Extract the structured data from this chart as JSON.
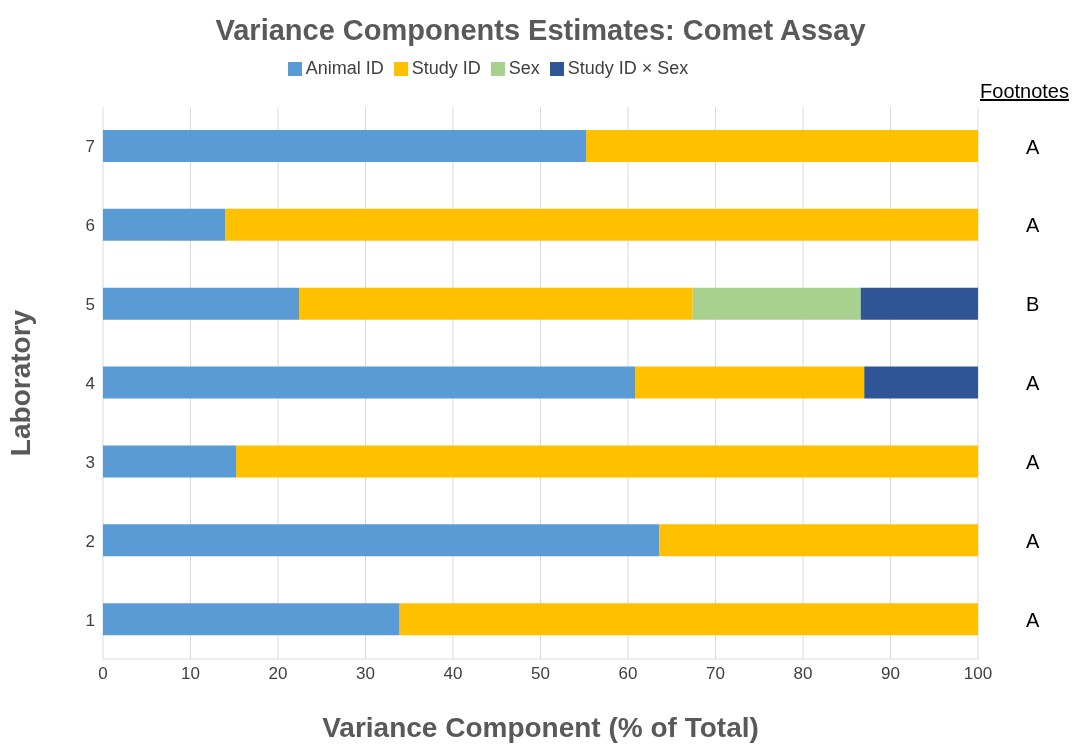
{
  "chart_data": {
    "type": "bar",
    "orientation": "horizontal",
    "stacked": true,
    "title": "Variance Components Estimates: Comet Assay",
    "xlabel": "Variance Component (% of Total)",
    "ylabel": "Laboratory",
    "categories": [
      "7",
      "6",
      "5",
      "4",
      "3",
      "2",
      "1"
    ],
    "series": [
      {
        "name": "Animal ID",
        "color": "#5b9bd5",
        "values": [
          55.2,
          14.0,
          22.4,
          60.8,
          15.2,
          63.6,
          33.9
        ]
      },
      {
        "name": "Study ID",
        "color": "#ffc000",
        "values": [
          44.8,
          86.0,
          45.0,
          26.2,
          84.8,
          36.4,
          66.1
        ]
      },
      {
        "name": "Sex",
        "color": "#a9d18e",
        "values": [
          null,
          null,
          19.2,
          null,
          null,
          null,
          null
        ]
      },
      {
        "name": "Study ID × Sex",
        "color": "#2f5597",
        "values": [
          null,
          null,
          13.4,
          13.0,
          null,
          null,
          null
        ]
      }
    ],
    "xlim": [
      0,
      100
    ],
    "xticks": [
      0,
      10,
      20,
      30,
      40,
      50,
      60,
      70,
      80,
      90,
      100
    ],
    "grid": "x",
    "legend": "top",
    "annotations": [
      "Footnotes",
      "A",
      "A",
      "B",
      "A",
      "A",
      "A",
      "A"
    ]
  }
}
